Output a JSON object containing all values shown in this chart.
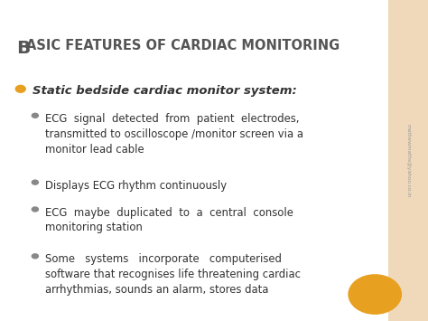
{
  "title_B": "B",
  "title_rest": "ASIC FEATURES OF CARDIAC MONITORING",
  "bg_color": "#FFFFFF",
  "right_bar_color": "#F0D9BB",
  "title_color": "#555555",
  "bullet_main_color": "#E8A020",
  "bullet_sub_color": "#888888",
  "text_color": "#333333",
  "orange_circle_color": "#E8A020",
  "sidebar_text": "mathewmaths@yahoo.co.in",
  "main_bullet": "Static bedside cardiac monitor system:",
  "sub_bullets": [
    "ECG  signal  detected  from  patient  electrodes,\ntransmitted to oscilloscope /monitor screen via a\nmonitor lead cable",
    "Displays ECG rhythm continuously",
    "ECG  maybe  duplicated  to  a  central  console\nmonitoring station",
    "Some   systems   incorporate   computerised\nsoftware that recognises life threatening cardiac\narrhythmias, sounds an alarm, stores data"
  ],
  "figw": 4.74,
  "figh": 3.55,
  "dpi": 100
}
